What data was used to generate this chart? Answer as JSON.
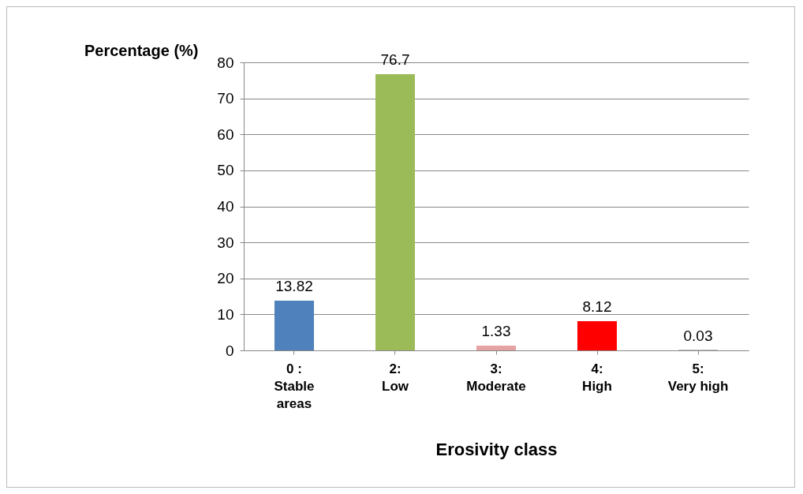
{
  "chart_data": {
    "type": "bar",
    "xlabel": "Erosivity class",
    "ylabel": "Percentage (%)",
    "categories": [
      "0 :\nStable\nareas",
      "2:\nLow",
      "3:\nModerate",
      "4:\nHigh",
      "5:\nVery high"
    ],
    "values": [
      13.82,
      76.7,
      1.33,
      8.12,
      0.03
    ],
    "colors": [
      "#4f81bd",
      "#9bbb59",
      "#e6a3a3",
      "#ff0000",
      "#000000"
    ],
    "ylim": [
      0,
      80
    ],
    "yticks": [
      0,
      10,
      20,
      30,
      40,
      50,
      60,
      70,
      80
    ],
    "grid": "y",
    "data_labels": true
  }
}
